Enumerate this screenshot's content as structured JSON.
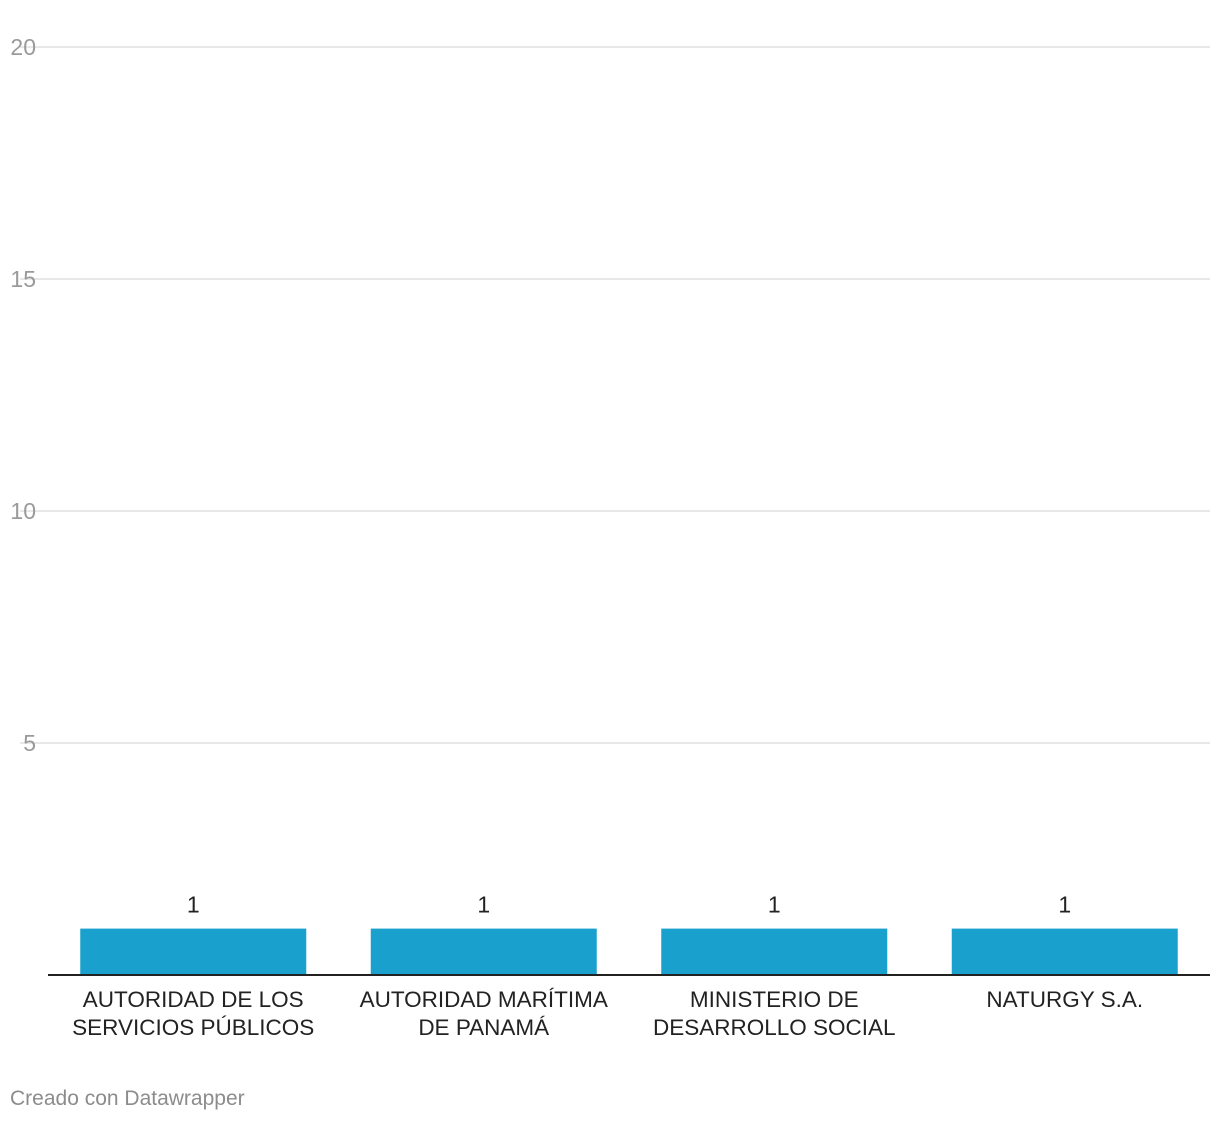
{
  "chart_data": {
    "type": "bar",
    "categories": [
      [
        "AUTORIDAD DE LOS",
        "SERVICIOS PÚBLICOS"
      ],
      [
        "AUTORIDAD MARÍTIMA",
        "DE PANAMÁ"
      ],
      [
        "MINISTERIO DE",
        "DESARROLLO SOCIAL"
      ],
      [
        "NATURGY S.A."
      ]
    ],
    "values": [
      1,
      1,
      1,
      1
    ],
    "value_labels": [
      "1",
      "1",
      "1",
      "1"
    ],
    "yticks": [
      5,
      10,
      15,
      20
    ],
    "ylim": [
      0,
      20
    ],
    "grid": true,
    "bar_color": "#1aa0cc",
    "title": "",
    "xlabel": "",
    "ylabel": ""
  },
  "footer": {
    "credit": "Creado con Datawrapper"
  }
}
